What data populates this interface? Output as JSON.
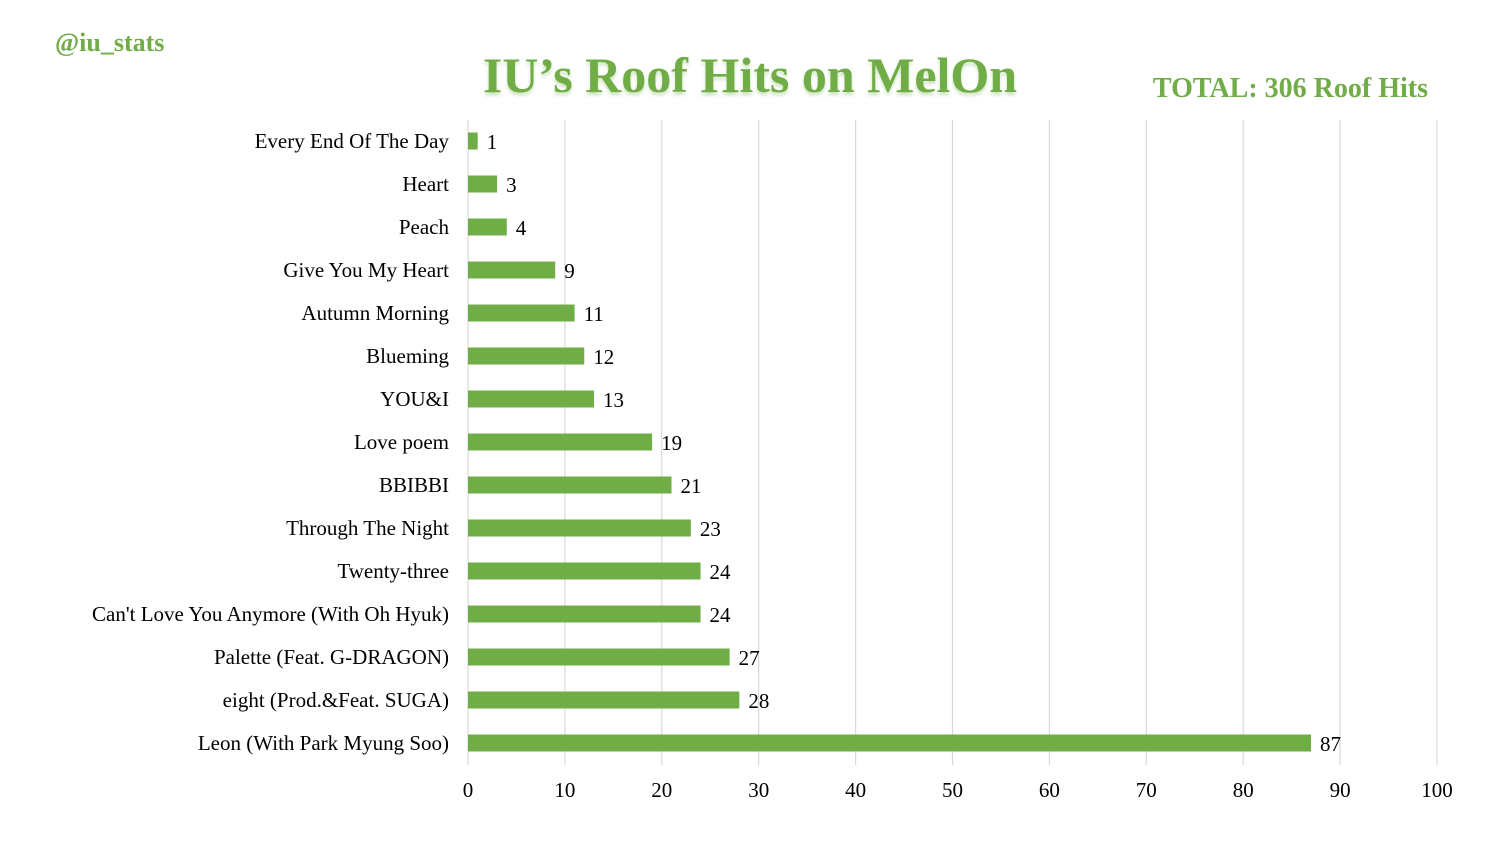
{
  "handle": "@iu_stats",
  "title": "IU’s Roof Hits on MelOn",
  "total_label": "TOTAL: 306 Roof Hits",
  "colors": {
    "bar": "#70ad47",
    "accent": "#70ad47",
    "grid": "#d9d9d9"
  },
  "chart_data": {
    "type": "bar",
    "orientation": "horizontal",
    "title": "IU’s Roof Hits on MelOn",
    "xlabel": "",
    "ylabel": "",
    "xlim": [
      0,
      100
    ],
    "x_ticks": [
      0,
      10,
      20,
      30,
      40,
      50,
      60,
      70,
      80,
      90,
      100
    ],
    "grid": "vertical",
    "categories": [
      "Every End Of The Day",
      "Heart",
      "Peach",
      "Give You My Heart",
      "Autumn Morning",
      "Blueming",
      "YOU&I",
      "Love poem",
      "BBIBBI",
      "Through The Night",
      "Twenty-three",
      "Can't Love You Anymore (With Oh Hyuk)",
      "Palette (Feat. G-DRAGON)",
      "eight (Prod.&Feat. SUGA)",
      "Leon (With Park Myung Soo)"
    ],
    "values": [
      1,
      3,
      4,
      9,
      11,
      12,
      13,
      19,
      21,
      23,
      24,
      24,
      27,
      28,
      87
    ]
  }
}
